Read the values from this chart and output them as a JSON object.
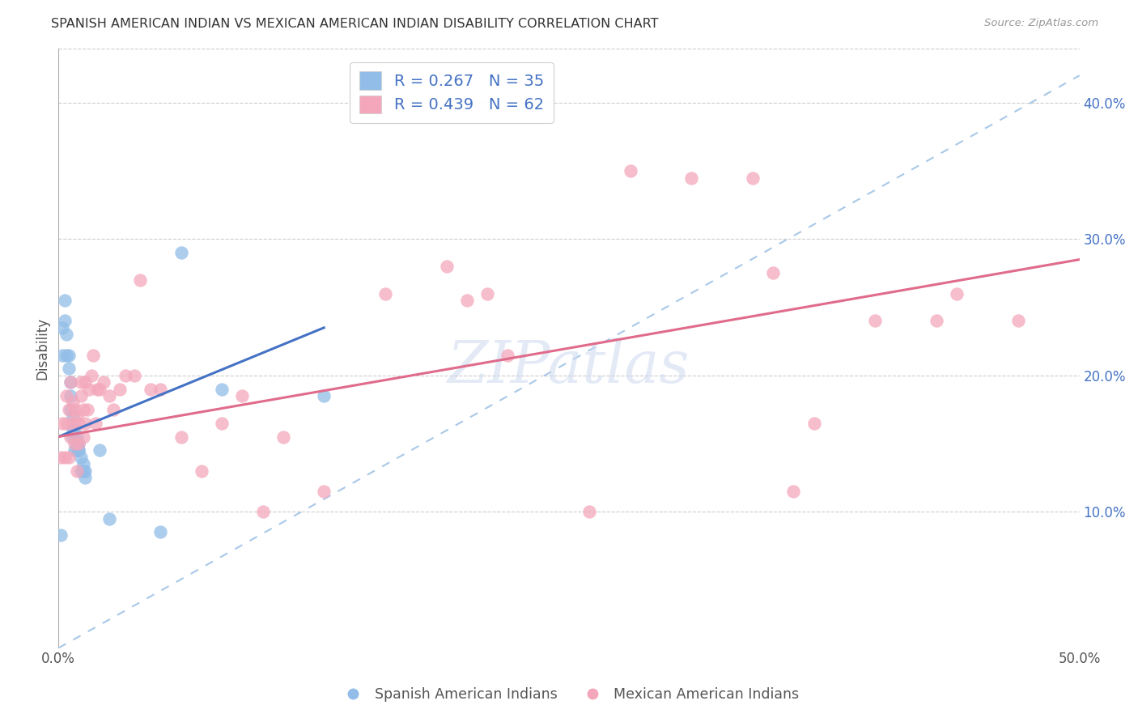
{
  "title": "SPANISH AMERICAN INDIAN VS MEXICAN AMERICAN INDIAN DISABILITY CORRELATION CHART",
  "source": "Source: ZipAtlas.com",
  "ylabel": "Disability",
  "xlabel": "",
  "xlim": [
    0.0,
    0.5
  ],
  "ylim": [
    0.0,
    0.44
  ],
  "xticks": [
    0.0,
    0.1,
    0.2,
    0.3,
    0.4,
    0.5
  ],
  "xticklabels": [
    "0.0%",
    "",
    "",
    "",
    "",
    "50.0%"
  ],
  "yticks_right": [
    0.1,
    0.2,
    0.3,
    0.4
  ],
  "ytick_labels_right": [
    "10.0%",
    "20.0%",
    "30.0%",
    "40.0%"
  ],
  "grid_yticks": [
    0.1,
    0.2,
    0.3,
    0.4
  ],
  "blue_color": "#92bde8",
  "pink_color": "#f4a7bb",
  "trendline_blue_color": "#4472c4",
  "trendline_pink_color": "#e06b8b",
  "trendline_dashed_color": "#a8c8e8",
  "watermark": "ZIPatlas",
  "background_color": "#ffffff",
  "spanish_x": [
    0.001,
    0.002,
    0.002,
    0.003,
    0.003,
    0.004,
    0.004,
    0.005,
    0.005,
    0.006,
    0.006,
    0.006,
    0.007,
    0.007,
    0.007,
    0.008,
    0.008,
    0.009,
    0.009,
    0.009,
    0.01,
    0.01,
    0.01,
    0.011,
    0.011,
    0.012,
    0.012,
    0.013,
    0.013,
    0.02,
    0.025,
    0.05,
    0.06,
    0.08,
    0.13
  ],
  "spanish_y": [
    0.083,
    0.215,
    0.235,
    0.24,
    0.255,
    0.215,
    0.23,
    0.205,
    0.215,
    0.185,
    0.195,
    0.175,
    0.17,
    0.155,
    0.16,
    0.16,
    0.145,
    0.155,
    0.15,
    0.145,
    0.145,
    0.15,
    0.145,
    0.13,
    0.14,
    0.135,
    0.13,
    0.13,
    0.125,
    0.145,
    0.095,
    0.085,
    0.29,
    0.19,
    0.185
  ],
  "mexican_x": [
    0.001,
    0.002,
    0.003,
    0.004,
    0.004,
    0.005,
    0.005,
    0.006,
    0.006,
    0.007,
    0.007,
    0.008,
    0.008,
    0.009,
    0.009,
    0.01,
    0.01,
    0.011,
    0.011,
    0.012,
    0.012,
    0.013,
    0.013,
    0.014,
    0.015,
    0.016,
    0.017,
    0.018,
    0.019,
    0.02,
    0.022,
    0.025,
    0.027,
    0.03,
    0.033,
    0.037,
    0.04,
    0.045,
    0.05,
    0.06,
    0.07,
    0.08,
    0.09,
    0.1,
    0.11,
    0.13,
    0.16,
    0.19,
    0.2,
    0.21,
    0.22,
    0.26,
    0.28,
    0.31,
    0.34,
    0.35,
    0.36,
    0.37,
    0.4,
    0.43,
    0.44,
    0.47
  ],
  "mexican_y": [
    0.14,
    0.165,
    0.14,
    0.165,
    0.185,
    0.14,
    0.175,
    0.155,
    0.195,
    0.165,
    0.18,
    0.15,
    0.175,
    0.13,
    0.17,
    0.15,
    0.165,
    0.195,
    0.185,
    0.175,
    0.155,
    0.195,
    0.165,
    0.175,
    0.19,
    0.2,
    0.215,
    0.165,
    0.19,
    0.19,
    0.195,
    0.185,
    0.175,
    0.19,
    0.2,
    0.2,
    0.27,
    0.19,
    0.19,
    0.155,
    0.13,
    0.165,
    0.185,
    0.1,
    0.155,
    0.115,
    0.26,
    0.28,
    0.255,
    0.26,
    0.215,
    0.1,
    0.35,
    0.345,
    0.345,
    0.275,
    0.115,
    0.165,
    0.24,
    0.24,
    0.26,
    0.24
  ],
  "blue_trendline_x": [
    0.0,
    0.13
  ],
  "blue_trendline_y": [
    0.155,
    0.235
  ],
  "pink_trendline_x": [
    0.0,
    0.5
  ],
  "pink_trendline_y": [
    0.155,
    0.285
  ]
}
